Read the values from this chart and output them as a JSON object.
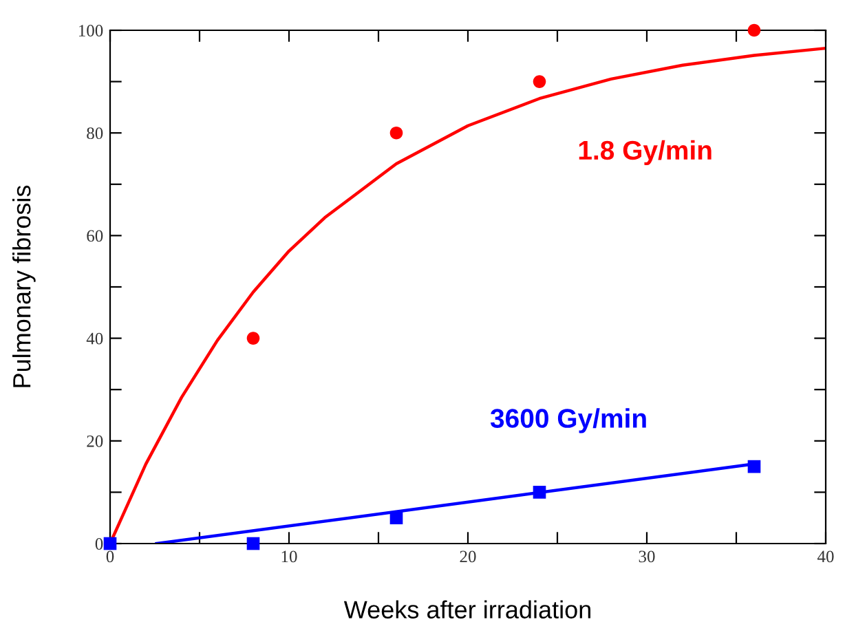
{
  "chart_data": {
    "type": "scatter",
    "xlabel": "Weeks after irradiation",
    "ylabel": "Pulmonary fibrosis",
    "xlim": [
      0,
      40
    ],
    "ylim": [
      0,
      100
    ],
    "xticks": [
      0,
      {
        "value": 5,
        "label": null
      },
      10,
      {
        "value": 15,
        "label": null
      },
      20,
      {
        "value": 25,
        "label": null
      },
      30,
      {
        "value": 35,
        "label": null
      },
      40
    ],
    "yticks": [
      0,
      {
        "value": 10,
        "label": null
      },
      20,
      {
        "value": 30,
        "label": null
      },
      40,
      {
        "value": 50,
        "label": null
      },
      60,
      {
        "value": 70,
        "label": null
      },
      80,
      {
        "value": 90,
        "label": null
      },
      100
    ],
    "grid": false,
    "legend": false,
    "series": [
      {
        "name": "1.8 Gy/min",
        "marker": "circle",
        "color": "#ff0000",
        "x": [
          8,
          16,
          24,
          36
        ],
        "values": [
          40,
          80,
          90,
          100
        ]
      },
      {
        "type": "line",
        "marker": "none",
        "line_style": "solid",
        "color": "#ff0000",
        "x": [
          0,
          2,
          4,
          6,
          8,
          10,
          12,
          16,
          20,
          24,
          28,
          32,
          36,
          40
        ],
        "values": [
          0,
          15.5,
          28.5,
          39.6,
          49,
          57,
          63.5,
          74,
          81.4,
          86.7,
          90.5,
          93.2,
          95.1,
          96.5
        ]
      },
      {
        "name": "3600 Gy/min",
        "marker": "square",
        "color": "#0000ff",
        "x": [
          0,
          8,
          16,
          24,
          36
        ],
        "values": [
          0,
          0,
          5,
          10,
          15
        ]
      },
      {
        "type": "line",
        "marker": "none",
        "line_style": "solid",
        "color": "#0000ff",
        "x": [
          2.6,
          36
        ],
        "values": [
          0,
          15.5
        ]
      }
    ]
  }
}
